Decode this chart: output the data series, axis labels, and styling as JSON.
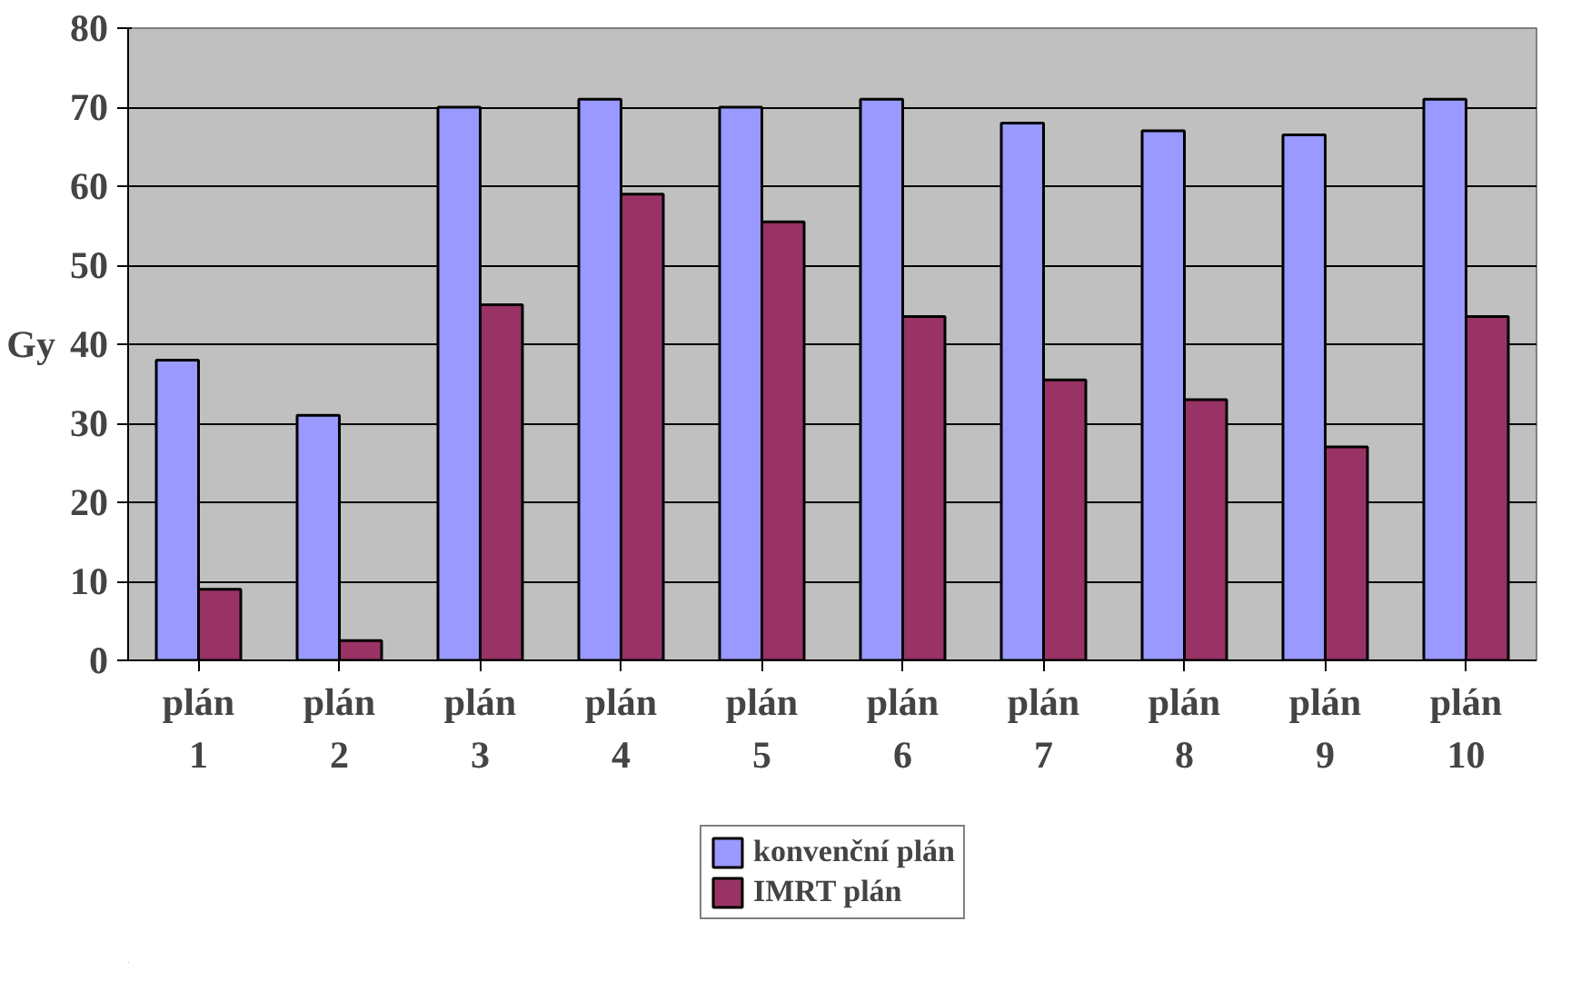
{
  "chart_data": {
    "type": "bar",
    "ylabel": "Gy",
    "categories": [
      "plán 1",
      "plán 2",
      "plán 3",
      "plán 4",
      "plán 5",
      "plán 6",
      "plán 7",
      "plán 8",
      "plán 9",
      "plán 10"
    ],
    "series": [
      {
        "name": "konvenční plán",
        "color": "#9999ff",
        "values": [
          38,
          31,
          70,
          71,
          70,
          71,
          68,
          67,
          66.5,
          71
        ]
      },
      {
        "name": "IMRT plán",
        "color": "#993366",
        "values": [
          9,
          2.5,
          45,
          59,
          55.5,
          43.5,
          35.5,
          33,
          27,
          43.5
        ]
      }
    ],
    "ylim": [
      0,
      80
    ],
    "yticks": [
      0,
      10,
      20,
      30,
      40,
      50,
      60,
      70,
      80
    ],
    "grid": "y",
    "legend": "bottom"
  }
}
